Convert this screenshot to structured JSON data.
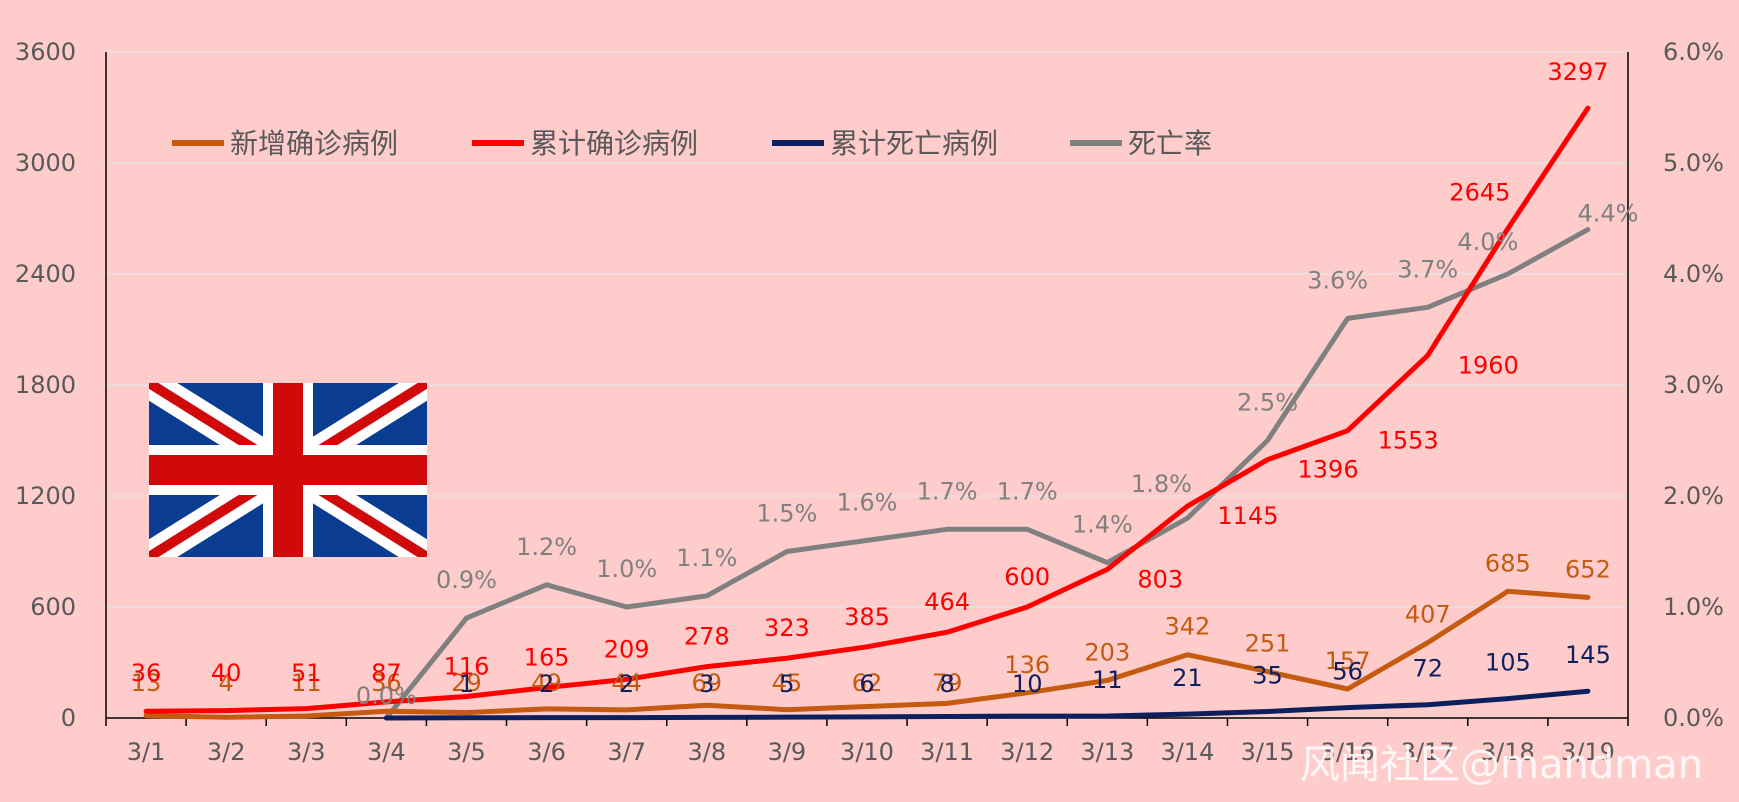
{
  "chart_data": {
    "type": "line",
    "categories": [
      "3/1",
      "3/2",
      "3/3",
      "3/4",
      "3/5",
      "3/6",
      "3/7",
      "3/8",
      "3/9",
      "3/10",
      "3/11",
      "3/12",
      "3/13",
      "3/14",
      "3/15",
      "3/16",
      "3/17",
      "3/18",
      "3/19"
    ],
    "series": [
      {
        "name": "新增确诊病例",
        "axis": "left",
        "color": "#C55A11",
        "values": [
          13,
          4,
          11,
          36,
          29,
          49,
          44,
          69,
          45,
          62,
          79,
          136,
          203,
          342,
          251,
          157,
          407,
          685,
          652
        ],
        "labels": [
          "13",
          "4",
          "11",
          "36",
          "29",
          "49",
          "44",
          "69",
          "45",
          "62",
          "79",
          "136",
          "203",
          "342",
          "251",
          "157",
          "407",
          "685",
          "652"
        ]
      },
      {
        "name": "累计确诊病例",
        "axis": "left",
        "color": "#FF0000",
        "values": [
          36,
          40,
          51,
          87,
          116,
          165,
          209,
          278,
          323,
          385,
          464,
          600,
          803,
          1145,
          1396,
          1553,
          1960,
          2645,
          3297
        ],
        "labels": [
          "36",
          "40",
          "51",
          "87",
          "116",
          "165",
          "209",
          "278",
          "323",
          "385",
          "464",
          "600",
          "803",
          "1145",
          "1396",
          "1553",
          "1960",
          "2645",
          "3297"
        ]
      },
      {
        "name": "累计死亡病例",
        "axis": "left",
        "color": "#0E1F5E",
        "values": [
          null,
          null,
          null,
          0,
          1,
          2,
          2,
          3,
          5,
          6,
          8,
          10,
          11,
          21,
          35,
          56,
          72,
          105,
          145
        ],
        "labels": [
          "",
          "",
          "",
          "",
          "1",
          "2",
          "2",
          "3",
          "5",
          "6",
          "8",
          "10",
          "11",
          "21",
          "35",
          "56",
          "72",
          "105",
          "145"
        ]
      },
      {
        "name": "死亡率",
        "axis": "right",
        "color": "#808080",
        "values": [
          null,
          null,
          null,
          0.0,
          0.9,
          1.2,
          1.0,
          1.1,
          1.5,
          1.6,
          1.7,
          1.7,
          1.4,
          1.8,
          2.5,
          3.6,
          3.7,
          4.0,
          4.4
        ],
        "labels": [
          "",
          "",
          "",
          "0.0%",
          "0.9%",
          "1.2%",
          "1.0%",
          "1.1%",
          "1.5%",
          "1.6%",
          "1.7%",
          "1.7%",
          "1.4%",
          "1.8%",
          "2.5%",
          "3.6%",
          "3.7%",
          "4.0%",
          "4.4%"
        ]
      }
    ],
    "y_left": {
      "min": 0,
      "max": 3600,
      "ticks": [
        "0",
        "600",
        "1200",
        "1800",
        "2400",
        "3000",
        "3600"
      ]
    },
    "y_right": {
      "min": 0,
      "max": 6,
      "ticks": [
        "0.0%",
        "1.0%",
        "2.0%",
        "3.0%",
        "4.0%",
        "5.0%",
        "6.0%"
      ]
    },
    "legend_position": "top-left",
    "grid": true
  },
  "watermark": "风闻社区@mandman",
  "flag": "union-jack"
}
